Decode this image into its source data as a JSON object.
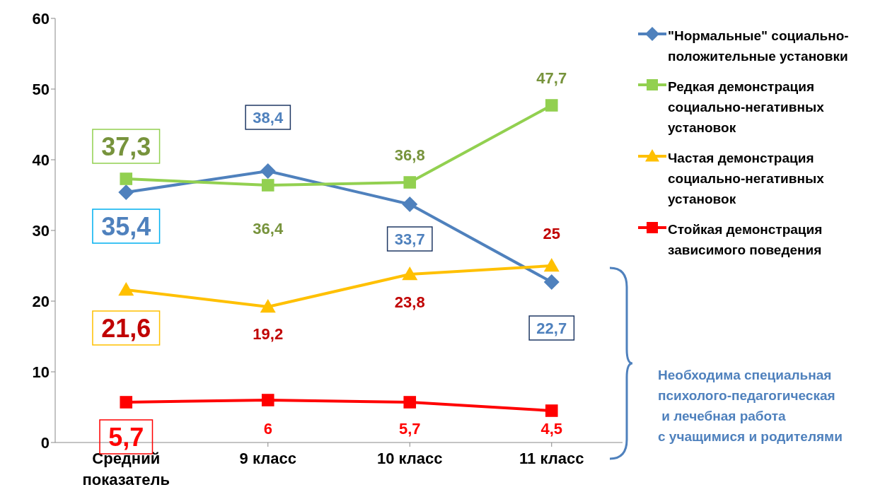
{
  "chart_data": {
    "type": "line",
    "categories": [
      "Средний показатель",
      "9 класс",
      "10 класс",
      "11 класс"
    ],
    "series": [
      {
        "name": "\"Нормальные\" социально-положительные установки",
        "color": "#4f81bd",
        "marker": "diamond",
        "values": [
          35.4,
          38.4,
          33.7,
          22.7
        ],
        "value_labels": [
          "35,4",
          "38,4",
          "33,7",
          "22,7"
        ]
      },
      {
        "name": "Редкая демонстрация социально-негативных установок",
        "color": "#92d050",
        "marker": "square",
        "values": [
          37.3,
          36.4,
          36.8,
          47.7
        ],
        "value_labels": [
          "37,3",
          "36,4",
          "36,8",
          "47,7"
        ]
      },
      {
        "name": "Частая демонстрация социально-негативных установок",
        "color": "#ffc000",
        "marker": "triangle",
        "values": [
          21.6,
          19.2,
          23.8,
          25
        ],
        "value_labels": [
          "21,6",
          "19,2",
          "23,8",
          "25"
        ]
      },
      {
        "name": "Стойкая демонстрация зависимого поведения",
        "color": "#ff0000",
        "marker": "square",
        "values": [
          5.7,
          6,
          5.7,
          4.5
        ],
        "value_labels": [
          "5,7",
          "6",
          "5,7",
          "4,5"
        ]
      }
    ],
    "ylim": [
      0,
      60
    ],
    "yticks": [
      0,
      10,
      20,
      30,
      40,
      50,
      60
    ],
    "grid": false,
    "legend": "right",
    "annotations": [
      "Необходима специальная\nпсихолого-педагогическая\n и лечебная работа\nс учащимися и родителями"
    ]
  }
}
